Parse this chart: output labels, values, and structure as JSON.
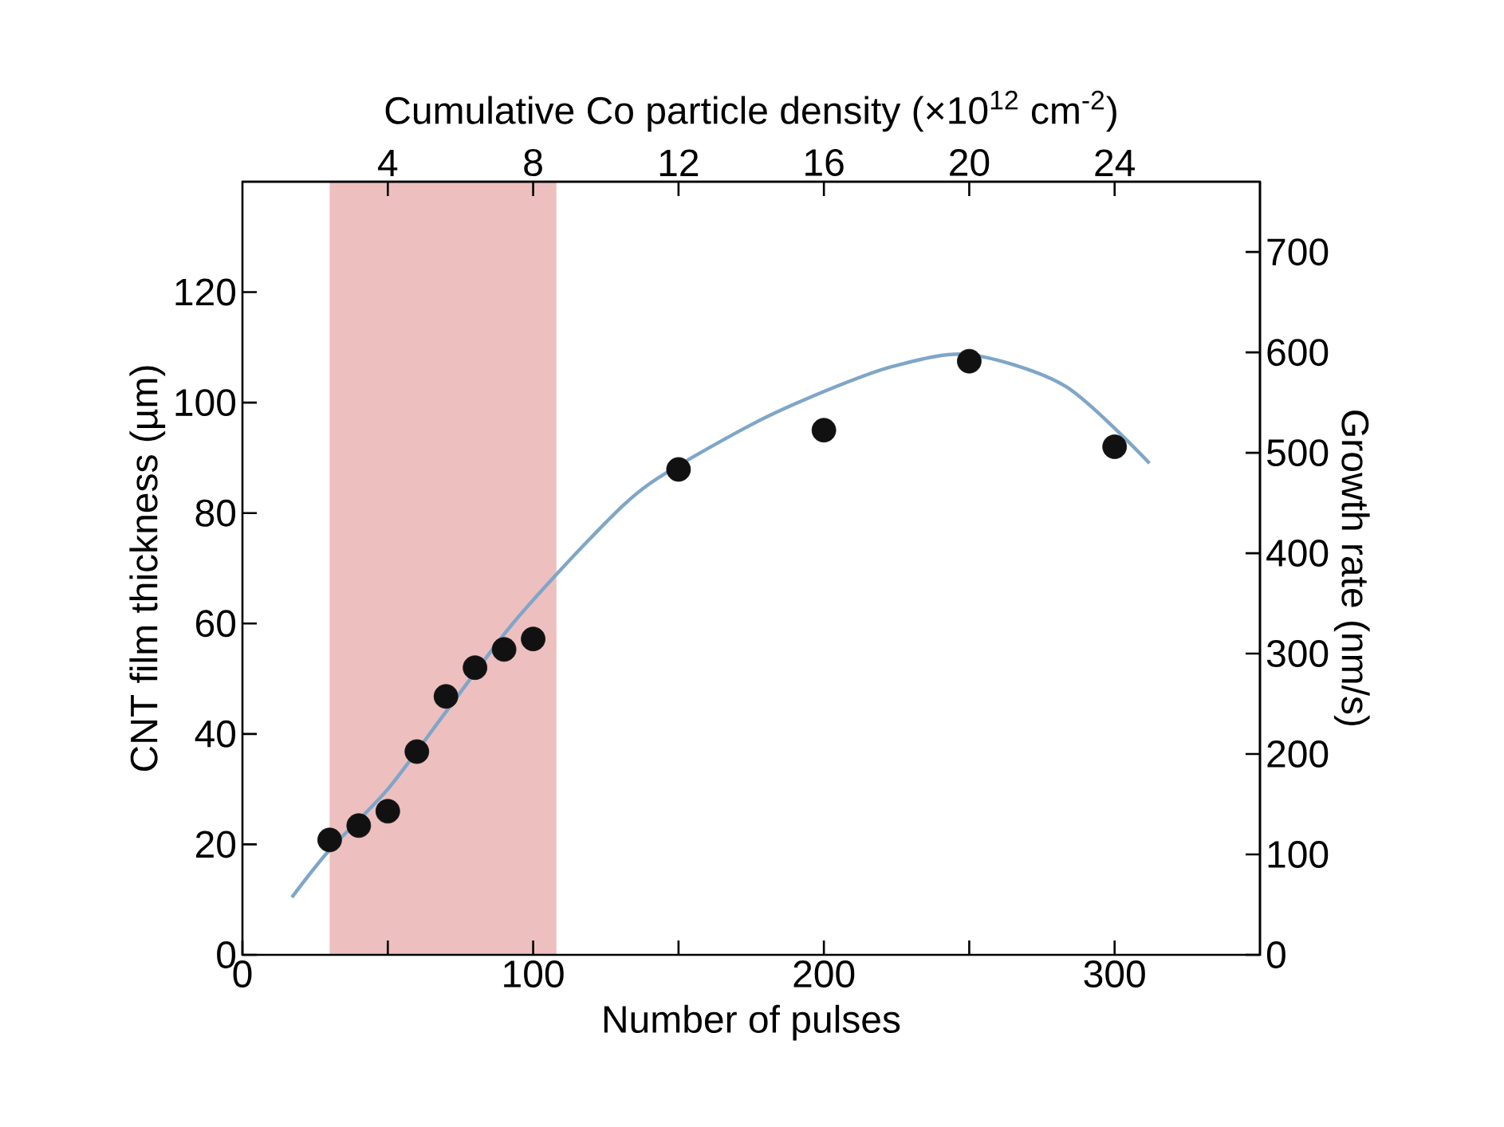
{
  "chart_data": {
    "type": "scatter",
    "xlabel": "Number of pulses",
    "x2label": "Cumulative Co particle density (×10$^{12}$ cm$^{-2}$)",
    "ylabel": "CNT film thickness (µm)",
    "y2label": "Growth rate (nm/s)",
    "xlim": [
      0,
      350
    ],
    "xticks": [
      0,
      {
        "value": 50,
        "label": null
      },
      100,
      {
        "value": 150,
        "label": null
      },
      200,
      {
        "value": 250,
        "label": null
      },
      300
    ],
    "x2lim": [
      0,
      28
    ],
    "x2ticks": [
      4,
      8,
      12,
      16,
      20,
      24
    ],
    "ylim": [
      0,
      140
    ],
    "yticks": [
      0,
      20,
      40,
      60,
      80,
      100,
      120
    ],
    "y2lim": [
      0,
      770
    ],
    "y2ticks": [
      0,
      100,
      200,
      300,
      400,
      500,
      600,
      700
    ],
    "marker": "circle",
    "legend": false,
    "grid": false,
    "bands": [
      {
        "axis": "x",
        "from": 30,
        "to": 108,
        "color": "#eebfbf"
      }
    ],
    "series": [
      {
        "type": "line",
        "color": "#7fa6c8",
        "marker": "none",
        "x": [
          17,
          30,
          50,
          70,
          93,
          120,
          140,
          175,
          200,
          224,
          250,
          283,
          312
        ],
        "values": [
          10.4,
          19,
          30,
          44,
          60,
          75.6,
          85.3,
          96,
          102,
          106.6,
          108.7,
          103,
          89
        ]
      },
      {
        "type": "scatter",
        "color": "#111111",
        "x": [
          30,
          40,
          50,
          60,
          70,
          80,
          90,
          100,
          150,
          200,
          250,
          300
        ],
        "values": [
          20.8,
          23.4,
          26,
          36.8,
          46.8,
          52,
          55.3,
          57.2,
          87.9,
          95,
          107.5,
          92
        ]
      }
    ]
  }
}
